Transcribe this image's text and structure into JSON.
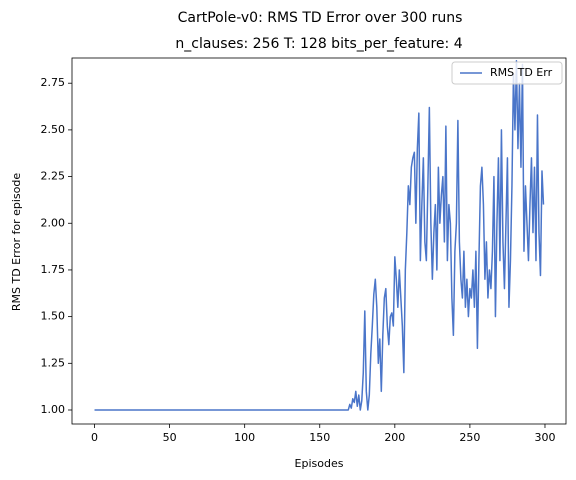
{
  "chart_data": {
    "type": "line",
    "title": "CartPole-v0: RMS TD Error over 300 runs",
    "subtitle": "n_clauses: 256 T: 128 bits_per_feature: 4",
    "x_label": "Episodes",
    "y_label": "RMS TD Error for episode",
    "legend": "upper right",
    "xlim": [
      -15,
      314
    ],
    "ylim": [
      0.925,
      2.885
    ],
    "xticks": [
      0,
      50,
      100,
      150,
      200,
      250,
      300
    ],
    "yticks": [
      {
        "value": 1.0,
        "label": "1.00"
      },
      {
        "value": 1.25,
        "label": "1.25"
      },
      {
        "value": 1.5,
        "label": "1.50"
      },
      {
        "value": 1.75,
        "label": "1.75"
      },
      {
        "value": 2.0,
        "label": "2.00"
      },
      {
        "value": 2.25,
        "label": "2.25"
      },
      {
        "value": 2.5,
        "label": "2.50"
      },
      {
        "value": 2.75,
        "label": "2.75"
      }
    ],
    "x": [
      0,
      1,
      2,
      3,
      4,
      5,
      6,
      7,
      8,
      9,
      10,
      11,
      12,
      13,
      14,
      15,
      16,
      17,
      18,
      19,
      20,
      21,
      22,
      23,
      24,
      25,
      26,
      27,
      28,
      29,
      30,
      31,
      32,
      33,
      34,
      35,
      36,
      37,
      38,
      39,
      40,
      41,
      42,
      43,
      44,
      45,
      46,
      47,
      48,
      49,
      50,
      51,
      52,
      53,
      54,
      55,
      56,
      57,
      58,
      59,
      60,
      61,
      62,
      63,
      64,
      65,
      66,
      67,
      68,
      69,
      70,
      71,
      72,
      73,
      74,
      75,
      76,
      77,
      78,
      79,
      80,
      81,
      82,
      83,
      84,
      85,
      86,
      87,
      88,
      89,
      90,
      91,
      92,
      93,
      94,
      95,
      96,
      97,
      98,
      99,
      100,
      101,
      102,
      103,
      104,
      105,
      106,
      107,
      108,
      109,
      110,
      111,
      112,
      113,
      114,
      115,
      116,
      117,
      118,
      119,
      120,
      121,
      122,
      123,
      124,
      125,
      126,
      127,
      128,
      129,
      130,
      131,
      132,
      133,
      134,
      135,
      136,
      137,
      138,
      139,
      140,
      141,
      142,
      143,
      144,
      145,
      146,
      147,
      148,
      149,
      150,
      151,
      152,
      153,
      154,
      155,
      156,
      157,
      158,
      159,
      160,
      161,
      162,
      163,
      164,
      165,
      166,
      167,
      168,
      169,
      170,
      171,
      172,
      173,
      174,
      175,
      176,
      177,
      178,
      179,
      180,
      181,
      182,
      183,
      184,
      185,
      186,
      187,
      188,
      189,
      190,
      191,
      192,
      193,
      194,
      195,
      196,
      197,
      198,
      199,
      200,
      201,
      202,
      203,
      204,
      205,
      206,
      207,
      208,
      209,
      210,
      211,
      212,
      213,
      214,
      215,
      216,
      217,
      218,
      219,
      220,
      221,
      222,
      223,
      224,
      225,
      226,
      227,
      228,
      229,
      230,
      231,
      232,
      233,
      234,
      235,
      236,
      237,
      238,
      239,
      240,
      241,
      242,
      243,
      244,
      245,
      246,
      247,
      248,
      249,
      250,
      251,
      252,
      253,
      254,
      255,
      256,
      257,
      258,
      259,
      260,
      261,
      262,
      263,
      264,
      265,
      266,
      267,
      268,
      269,
      270,
      271,
      272,
      273,
      274,
      275,
      276,
      277,
      278,
      279,
      280,
      281,
      282,
      283,
      284,
      285,
      286,
      287,
      288,
      289,
      290,
      291,
      292,
      293,
      294,
      295,
      296,
      297,
      298,
      299
    ],
    "series": [
      {
        "name": "RMS TD Err",
        "color": "#4a75c9",
        "values": [
          1.0,
          1.0,
          1.0,
          1.0,
          1.0,
          1.0,
          1.0,
          1.0,
          1.0,
          1.0,
          1.0,
          1.0,
          1.0,
          1.0,
          1.0,
          1.0,
          1.0,
          1.0,
          1.0,
          1.0,
          1.0,
          1.0,
          1.0,
          1.0,
          1.0,
          1.0,
          1.0,
          1.0,
          1.0,
          1.0,
          1.0,
          1.0,
          1.0,
          1.0,
          1.0,
          1.0,
          1.0,
          1.0,
          1.0,
          1.0,
          1.0,
          1.0,
          1.0,
          1.0,
          1.0,
          1.0,
          1.0,
          1.0,
          1.0,
          1.0,
          1.0,
          1.0,
          1.0,
          1.0,
          1.0,
          1.0,
          1.0,
          1.0,
          1.0,
          1.0,
          1.0,
          1.0,
          1.0,
          1.0,
          1.0,
          1.0,
          1.0,
          1.0,
          1.0,
          1.0,
          1.0,
          1.0,
          1.0,
          1.0,
          1.0,
          1.0,
          1.0,
          1.0,
          1.0,
          1.0,
          1.0,
          1.0,
          1.0,
          1.0,
          1.0,
          1.0,
          1.0,
          1.0,
          1.0,
          1.0,
          1.0,
          1.0,
          1.0,
          1.0,
          1.0,
          1.0,
          1.0,
          1.0,
          1.0,
          1.0,
          1.0,
          1.0,
          1.0,
          1.0,
          1.0,
          1.0,
          1.0,
          1.0,
          1.0,
          1.0,
          1.0,
          1.0,
          1.0,
          1.0,
          1.0,
          1.0,
          1.0,
          1.0,
          1.0,
          1.0,
          1.0,
          1.0,
          1.0,
          1.0,
          1.0,
          1.0,
          1.0,
          1.0,
          1.0,
          1.0,
          1.0,
          1.0,
          1.0,
          1.0,
          1.0,
          1.0,
          1.0,
          1.0,
          1.0,
          1.0,
          1.0,
          1.0,
          1.0,
          1.0,
          1.0,
          1.0,
          1.0,
          1.0,
          1.0,
          1.0,
          1.0,
          1.0,
          1.0,
          1.0,
          1.0,
          1.0,
          1.0,
          1.0,
          1.0,
          1.0,
          1.0,
          1.0,
          1.0,
          1.0,
          1.0,
          1.0,
          1.0,
          1.0,
          1.0,
          1.0,
          1.03,
          1.01,
          1.06,
          1.04,
          1.1,
          1.02,
          1.08,
          1.0,
          1.05,
          1.2,
          1.53,
          1.1,
          1.0,
          1.08,
          1.3,
          1.45,
          1.62,
          1.7,
          1.55,
          1.25,
          1.38,
          1.1,
          1.4,
          1.6,
          1.65,
          1.45,
          1.35,
          1.5,
          1.52,
          1.45,
          1.82,
          1.7,
          1.55,
          1.75,
          1.6,
          1.45,
          1.2,
          1.75,
          1.95,
          2.2,
          2.1,
          2.3,
          2.35,
          2.38,
          2.0,
          2.4,
          2.59,
          1.8,
          2.1,
          2.35,
          1.9,
          1.8,
          2.2,
          2.62,
          2.0,
          1.7,
          1.95,
          2.1,
          1.75,
          2.3,
          2.0,
          2.15,
          2.25,
          1.9,
          2.52,
          1.8,
          2.1,
          2.0,
          1.6,
          1.4,
          1.85,
          2.0,
          2.55,
          1.9,
          1.7,
          1.6,
          1.85,
          1.55,
          1.7,
          1.5,
          1.65,
          1.6,
          1.75,
          1.55,
          1.85,
          1.33,
          1.8,
          2.2,
          2.3,
          2.1,
          1.7,
          1.9,
          1.6,
          1.75,
          1.65,
          1.85,
          2.25,
          1.5,
          2.0,
          2.35,
          1.8,
          2.5,
          1.9,
          1.65,
          2.0,
          2.35,
          1.55,
          1.8,
          2.2,
          2.8,
          2.5,
          2.87,
          2.4,
          2.75,
          2.3,
          2.85,
          1.85,
          2.2,
          2.0,
          1.8,
          2.1,
          2.35,
          1.95,
          2.3,
          1.8,
          2.58,
          1.95,
          1.72,
          2.28,
          2.1
        ]
      }
    ]
  }
}
